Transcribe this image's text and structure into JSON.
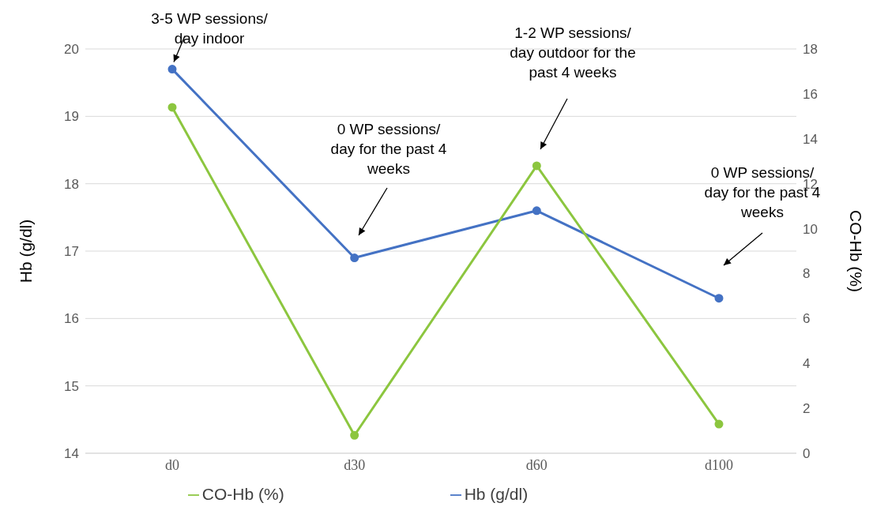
{
  "chart_data": {
    "type": "line",
    "categories": [
      "d0",
      "d30",
      "d60",
      "d100"
    ],
    "series": [
      {
        "name": "Hb (g/dl)",
        "color": "#4472c4",
        "values": [
          19.7,
          16.9,
          17.6,
          16.3
        ]
      },
      {
        "name": "CO-Hb (%)",
        "color": "#8cc63f",
        "values": [
          15.4,
          0.8,
          12.8,
          1.3
        ],
        "axis": "y2"
      }
    ],
    "ylabel": "Hb (g/dl)",
    "y2label": "CO-Hb (%)",
    "ylim": [
      14,
      20
    ],
    "yticks": [
      14,
      15,
      16,
      17,
      18,
      19,
      20
    ],
    "y2lim": [
      0,
      18
    ],
    "y2ticks": [
      0,
      2,
      4,
      6,
      8,
      10,
      12,
      14,
      16,
      18
    ],
    "grid": "y",
    "legend": "bottom",
    "marker": "circle",
    "line_style": "solid",
    "annotations": [
      {
        "text": "3-5 WP sessions/\nday indoor",
        "x": "d0",
        "y": 19.7
      },
      "0 WP sessions/\nday for the past 4\nweeks",
      "1-2 WP sessions/\nday outdoor for the\npast 4 weeks",
      "0 WP sessions/\nday for the past 4\nweeks"
    ]
  }
}
